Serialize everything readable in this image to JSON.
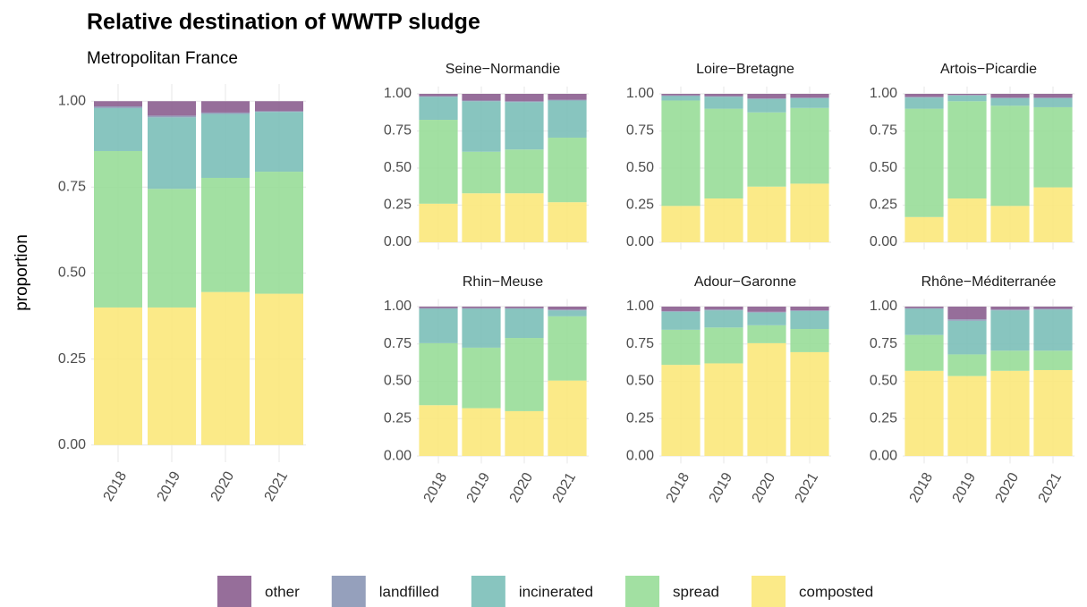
{
  "chart_data": [
    {
      "type": "bar",
      "stacked": true,
      "title": "Relative destination of WWTP sludge",
      "subtitle": "Metropolitan France",
      "y_label": "proportion",
      "categories": [
        "2018",
        "2019",
        "2020",
        "2021"
      ],
      "series": [
        {
          "name": "other",
          "color": "#8b5e8f",
          "values": [
            0.015,
            0.042,
            0.033,
            0.029
          ]
        },
        {
          "name": "landfilled",
          "color": "#8a96b5",
          "values": [
            0.005,
            0.005,
            0.004,
            0.002
          ]
        },
        {
          "name": "incinerated",
          "color": "#7bbfb8",
          "values": [
            0.125,
            0.208,
            0.186,
            0.174
          ]
        },
        {
          "name": "spread",
          "color": "#98dd98",
          "values": [
            0.455,
            0.345,
            0.332,
            0.355
          ]
        },
        {
          "name": "composted",
          "color": "#fbe87b",
          "values": [
            0.4,
            0.4,
            0.445,
            0.44
          ]
        }
      ],
      "ylim": [
        -0.05,
        1.05
      ],
      "yticks": [
        {
          "value": 0,
          "label": "0.00"
        },
        {
          "value": 0.25,
          "label": "0.25"
        },
        {
          "value": 0.5,
          "label": "0.50"
        },
        {
          "value": 0.75,
          "label": "0.75"
        },
        {
          "value": 1,
          "label": "1.00"
        }
      ],
      "grid": true
    },
    {
      "type": "bar",
      "stacked": true,
      "title": "Seine−Normandie",
      "categories": [
        null,
        null,
        null,
        null
      ],
      "series": [
        {
          "values": [
            0.015,
            0.045,
            0.05,
            0.04
          ]
        },
        {
          "values": [
            0.005,
            0.005,
            0.005,
            0.005
          ]
        },
        {
          "values": [
            0.155,
            0.34,
            0.32,
            0.25
          ]
        },
        {
          "values": [
            0.565,
            0.28,
            0.295,
            0.435
          ]
        },
        {
          "values": [
            0.26,
            0.33,
            0.33,
            0.27
          ]
        }
      ],
      "ylim": [
        -0.05,
        1.05
      ],
      "yticks": [
        {
          "value": 0,
          "label": "0.00"
        },
        {
          "value": 0.25,
          "label": "0.25"
        },
        {
          "value": 0.5,
          "label": "0.50"
        },
        {
          "value": 0.75,
          "label": "0.75"
        },
        {
          "value": 1,
          "label": "1.00"
        }
      ],
      "grid": true
    },
    {
      "type": "bar",
      "stacked": true,
      "title": "Loire−Bretagne",
      "categories": [
        null,
        null,
        null,
        null
      ],
      "series": [
        {
          "values": [
            0.01,
            0.015,
            0.03,
            0.025
          ]
        },
        {
          "values": [
            0.005,
            0.005,
            0.005,
            0.005
          ]
        },
        {
          "values": [
            0.03,
            0.08,
            0.09,
            0.065
          ]
        },
        {
          "values": [
            0.71,
            0.605,
            0.5,
            0.51
          ]
        },
        {
          "values": [
            0.245,
            0.295,
            0.375,
            0.395
          ]
        }
      ],
      "ylim": [
        -0.05,
        1.05
      ],
      "yticks": [
        {
          "value": 0,
          "label": "0.00"
        },
        {
          "value": 0.25,
          "label": "0.25"
        },
        {
          "value": 0.5,
          "label": "0.50"
        },
        {
          "value": 0.75,
          "label": "0.75"
        },
        {
          "value": 1,
          "label": "1.00"
        }
      ],
      "grid": true
    },
    {
      "type": "bar",
      "stacked": true,
      "title": "Artois−Picardie",
      "categories": [
        null,
        null,
        null,
        null
      ],
      "series": [
        {
          "values": [
            0.02,
            0.008,
            0.025,
            0.025
          ]
        },
        {
          "values": [
            0.005,
            0.002,
            0.005,
            0.005
          ]
        },
        {
          "values": [
            0.075,
            0.04,
            0.05,
            0.06
          ]
        },
        {
          "values": [
            0.73,
            0.655,
            0.675,
            0.54
          ]
        },
        {
          "values": [
            0.17,
            0.295,
            0.245,
            0.37
          ]
        }
      ],
      "ylim": [
        -0.05,
        1.05
      ],
      "yticks": [
        {
          "value": 0,
          "label": "0.00"
        },
        {
          "value": 0.25,
          "label": "0.25"
        },
        {
          "value": 0.5,
          "label": "0.50"
        },
        {
          "value": 0.75,
          "label": "0.75"
        },
        {
          "value": 1,
          "label": "1.00"
        }
      ],
      "grid": true
    },
    {
      "type": "bar",
      "stacked": true,
      "title": "Rhin−Meuse",
      "categories": [
        "2018",
        "2019",
        "2020",
        "2021"
      ],
      "series": [
        {
          "values": [
            0.01,
            0.01,
            0.01,
            0.02
          ]
        },
        {
          "values": [
            0.005,
            0.005,
            0.005,
            0.005
          ]
        },
        {
          "values": [
            0.23,
            0.26,
            0.195,
            0.04
          ]
        },
        {
          "values": [
            0.415,
            0.405,
            0.49,
            0.43
          ]
        },
        {
          "values": [
            0.34,
            0.32,
            0.3,
            0.505
          ]
        }
      ],
      "ylim": [
        -0.05,
        1.05
      ],
      "yticks": [
        {
          "value": 0,
          "label": "0.00"
        },
        {
          "value": 0.25,
          "label": "0.25"
        },
        {
          "value": 0.5,
          "label": "0.50"
        },
        {
          "value": 0.75,
          "label": "0.75"
        },
        {
          "value": 1,
          "label": "1.00"
        }
      ],
      "grid": true
    },
    {
      "type": "bar",
      "stacked": true,
      "title": "Adour−Garonne",
      "categories": [
        "2018",
        "2019",
        "2020",
        "2021"
      ],
      "series": [
        {
          "values": [
            0.03,
            0.02,
            0.035,
            0.025
          ]
        },
        {
          "values": [
            0.005,
            0.005,
            0.005,
            0.005
          ]
        },
        {
          "values": [
            0.12,
            0.115,
            0.085,
            0.12
          ]
        },
        {
          "values": [
            0.235,
            0.24,
            0.12,
            0.155
          ]
        },
        {
          "values": [
            0.61,
            0.62,
            0.755,
            0.695
          ]
        }
      ],
      "ylim": [
        -0.05,
        1.05
      ],
      "yticks": [
        {
          "value": 0,
          "label": "0.00"
        },
        {
          "value": 0.25,
          "label": "0.25"
        },
        {
          "value": 0.5,
          "label": "0.50"
        },
        {
          "value": 0.75,
          "label": "0.75"
        },
        {
          "value": 1,
          "label": "1.00"
        }
      ],
      "grid": true
    },
    {
      "type": "bar",
      "stacked": true,
      "title": "Rhône−Méditerranée",
      "categories": [
        "2018",
        "2019",
        "2020",
        "2021"
      ],
      "series": [
        {
          "values": [
            0.01,
            0.085,
            0.02,
            0.015
          ]
        },
        {
          "values": [
            0.005,
            0.01,
            0.005,
            0.005
          ]
        },
        {
          "values": [
            0.175,
            0.225,
            0.27,
            0.275
          ]
        },
        {
          "values": [
            0.24,
            0.145,
            0.135,
            0.13
          ]
        },
        {
          "values": [
            0.57,
            0.535,
            0.57,
            0.575
          ]
        }
      ],
      "ylim": [
        -0.05,
        1.05
      ],
      "yticks": [
        {
          "value": 0,
          "label": "0.00"
        },
        {
          "value": 0.25,
          "label": "0.25"
        },
        {
          "value": 0.5,
          "label": "0.50"
        },
        {
          "value": 0.75,
          "label": "0.75"
        },
        {
          "value": 1,
          "label": "1.00"
        }
      ],
      "grid": true
    }
  ]
}
